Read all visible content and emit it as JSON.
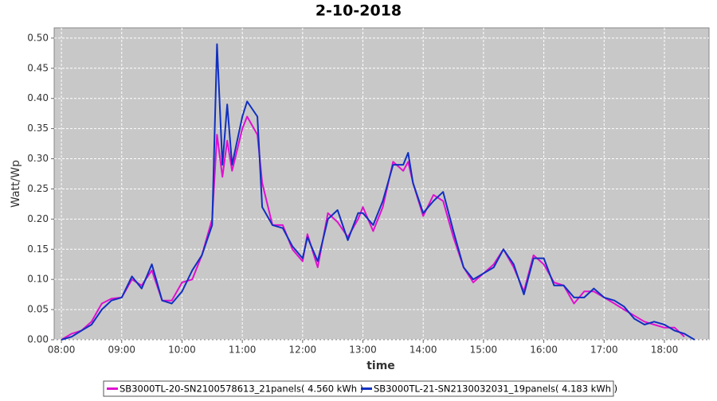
{
  "chart_data": {
    "type": "line",
    "title": "2-10-2018",
    "x_label": "time",
    "y_label": "Watt/Wp",
    "x": [
      8.0,
      8.17,
      8.33,
      8.5,
      8.67,
      8.83,
      9.0,
      9.17,
      9.33,
      9.5,
      9.67,
      9.83,
      10.0,
      10.17,
      10.33,
      10.5,
      10.58,
      10.67,
      10.75,
      10.83,
      11.0,
      11.08,
      11.25,
      11.33,
      11.5,
      11.67,
      11.83,
      12.0,
      12.08,
      12.25,
      12.42,
      12.58,
      12.75,
      12.92,
      13.0,
      13.17,
      13.33,
      13.5,
      13.67,
      13.75,
      13.83,
      14.0,
      14.17,
      14.33,
      14.5,
      14.67,
      14.83,
      15.0,
      15.17,
      15.33,
      15.5,
      15.67,
      15.83,
      16.0,
      16.17,
      16.33,
      16.5,
      16.67,
      16.83,
      17.0,
      17.17,
      17.33,
      17.5,
      17.67,
      17.83,
      18.0,
      18.17,
      18.33,
      18.5
    ],
    "series": [
      {
        "name": "SB3000TL-20-SN2100578613_21panels( 4.560 kWh )",
        "color": "#e010d0",
        "values": [
          0.0,
          0.01,
          0.015,
          0.03,
          0.06,
          0.068,
          0.07,
          0.1,
          0.09,
          0.115,
          0.065,
          0.065,
          0.095,
          0.1,
          0.14,
          0.2,
          0.34,
          0.27,
          0.33,
          0.28,
          0.35,
          0.37,
          0.34,
          0.26,
          0.19,
          0.19,
          0.15,
          0.13,
          0.175,
          0.12,
          0.21,
          0.195,
          0.17,
          0.2,
          0.22,
          0.18,
          0.22,
          0.295,
          0.28,
          0.295,
          0.26,
          0.205,
          0.24,
          0.23,
          0.17,
          0.12,
          0.095,
          0.11,
          0.125,
          0.15,
          0.12,
          0.08,
          0.14,
          0.125,
          0.095,
          0.09,
          0.06,
          0.08,
          0.08,
          0.07,
          0.06,
          0.05,
          0.04,
          0.03,
          0.025,
          0.02,
          0.02,
          0.005,
          null
        ]
      },
      {
        "name": "SB3000TL-21-SN2130032031_19panels( 4.183 kWh )",
        "color": "#1030c0",
        "values": [
          0.0,
          0.005,
          0.015,
          0.025,
          0.05,
          0.065,
          0.07,
          0.105,
          0.085,
          0.125,
          0.065,
          0.06,
          0.08,
          0.115,
          0.14,
          0.19,
          0.49,
          0.29,
          0.39,
          0.29,
          0.37,
          0.395,
          0.37,
          0.22,
          0.19,
          0.185,
          0.155,
          0.135,
          0.17,
          0.13,
          0.2,
          0.215,
          0.165,
          0.21,
          0.21,
          0.19,
          0.23,
          0.29,
          0.29,
          0.31,
          0.26,
          0.21,
          0.23,
          0.245,
          0.18,
          0.12,
          0.1,
          0.11,
          0.12,
          0.15,
          0.125,
          0.075,
          0.135,
          0.135,
          0.09,
          0.09,
          0.07,
          0.07,
          0.085,
          0.07,
          0.065,
          0.055,
          0.035,
          0.025,
          0.03,
          0.025,
          0.015,
          0.01,
          0.0
        ]
      }
    ],
    "xlim": [
      7.88,
      18.74
    ],
    "xticks": [
      {
        "value": 8,
        "label": "08:00"
      },
      {
        "value": 9,
        "label": "09:00"
      },
      {
        "value": 10,
        "label": "10:00"
      },
      {
        "value": 11,
        "label": "11:00"
      },
      {
        "value": 12,
        "label": "12:00"
      },
      {
        "value": 13,
        "label": "13:00"
      },
      {
        "value": 14,
        "label": "14:00"
      },
      {
        "value": 15,
        "label": "15:00"
      },
      {
        "value": 16,
        "label": "16:00"
      },
      {
        "value": 17,
        "label": "17:00"
      },
      {
        "value": 18,
        "label": "18:00"
      }
    ],
    "ylim": [
      0,
      0.517
    ],
    "yticks": [
      {
        "value": 0,
        "label": "0.00"
      },
      {
        "value": 0.05,
        "label": "0.05"
      },
      {
        "value": 0.1,
        "label": "0.10"
      },
      {
        "value": 0.15,
        "label": "0.15"
      },
      {
        "value": 0.2,
        "label": "0.20"
      },
      {
        "value": 0.25,
        "label": "0.25"
      },
      {
        "value": 0.3,
        "label": "0.30"
      },
      {
        "value": 0.35,
        "label": "0.35"
      },
      {
        "value": 0.4,
        "label": "0.40"
      },
      {
        "value": 0.45,
        "label": "0.45"
      },
      {
        "value": 0.5,
        "label": "0.50"
      }
    ],
    "grid": true,
    "legend": "bottom"
  }
}
